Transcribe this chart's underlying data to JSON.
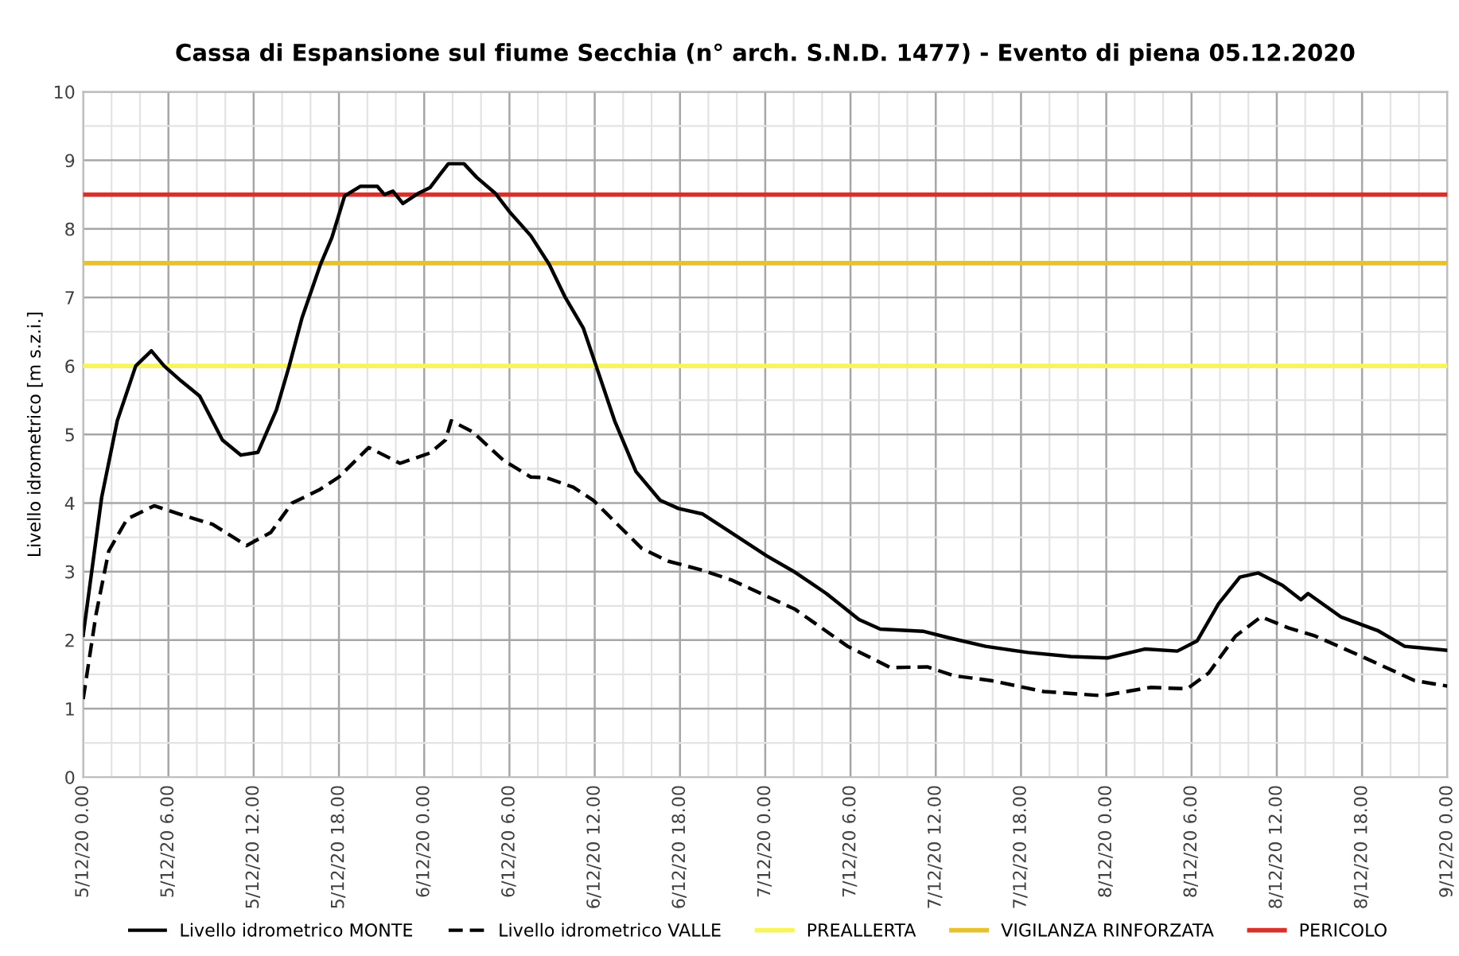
{
  "chart_data": {
    "type": "line",
    "title": "Cassa di Espansione sul fiume Secchia (n° arch. S.N.D. 1477) - Evento di piena 05.12.2020",
    "ylabel": "Livello idrometrico [m s.z.i.]",
    "series": [
      {
        "name": "Livello idrometrico MONTE",
        "color": "#000000",
        "line_style": "solid",
        "x": [
          "2020-12-05T00:00",
          "2020-12-05T01:18",
          "2020-12-05T02:24",
          "2020-12-05T03:42",
          "2020-12-05T04:48",
          "2020-12-05T05:42",
          "2020-12-05T06:54",
          "2020-12-05T08:12",
          "2020-12-05T09:48",
          "2020-12-05T11:06",
          "2020-12-05T12:18",
          "2020-12-05T13:36",
          "2020-12-05T14:30",
          "2020-12-05T15:24",
          "2020-12-05T16:42",
          "2020-12-05T17:30",
          "2020-12-05T18:24",
          "2020-12-05T19:30",
          "2020-12-05T20:42",
          "2020-12-05T21:12",
          "2020-12-05T21:48",
          "2020-12-05T22:30",
          "2020-12-05T23:36",
          "2020-12-06T00:24",
          "2020-12-06T01:06",
          "2020-12-06T01:42",
          "2020-12-06T02:48",
          "2020-12-06T03:42",
          "2020-12-06T05:00",
          "2020-12-06T06:00",
          "2020-12-06T07:30",
          "2020-12-06T08:48",
          "2020-12-06T09:54",
          "2020-12-06T11:12",
          "2020-12-06T12:06",
          "2020-12-06T13:24",
          "2020-12-06T14:54",
          "2020-12-06T16:36",
          "2020-12-06T17:54",
          "2020-12-06T19:36",
          "2020-12-06T21:36",
          "2020-12-07T00:06",
          "2020-12-07T02:06",
          "2020-12-07T04:18",
          "2020-12-07T06:36",
          "2020-12-07T08:06",
          "2020-12-07T11:06",
          "2020-12-07T13:00",
          "2020-12-07T15:30",
          "2020-12-07T18:30",
          "2020-12-07T21:30",
          "2020-12-08T00:06",
          "2020-12-08T02:42",
          "2020-12-08T05:00",
          "2020-12-08T06:24",
          "2020-12-08T07:54",
          "2020-12-08T09:24",
          "2020-12-08T10:42",
          "2020-12-08T12:24",
          "2020-12-08T13:42",
          "2020-12-08T14:12",
          "2020-12-08T16:30",
          "2020-12-08T19:06",
          "2020-12-08T21:00",
          "2020-12-09T00:00"
        ],
        "values": [
          2.07,
          4.08,
          5.2,
          6.0,
          6.22,
          6.0,
          5.78,
          5.56,
          4.92,
          4.7,
          4.74,
          5.36,
          6.0,
          6.7,
          7.48,
          7.87,
          8.48,
          8.62,
          8.62,
          8.5,
          8.55,
          8.37,
          8.52,
          8.6,
          8.79,
          8.95,
          8.95,
          8.75,
          8.52,
          8.25,
          7.9,
          7.48,
          7.01,
          6.55,
          6.0,
          5.2,
          4.46,
          4.04,
          3.92,
          3.84,
          3.57,
          3.23,
          2.99,
          2.68,
          2.3,
          2.16,
          2.13,
          2.03,
          1.91,
          1.82,
          1.76,
          1.74,
          1.87,
          1.84,
          1.99,
          2.53,
          2.92,
          2.98,
          2.8,
          2.59,
          2.68,
          2.34,
          2.14,
          1.91,
          1.85
        ]
      },
      {
        "name": "Livello idrometrico VALLE",
        "color": "#000000",
        "line_style": "dashed",
        "x": [
          "2020-12-05T00:00",
          "2020-12-05T00:54",
          "2020-12-05T01:48",
          "2020-12-05T03:06",
          "2020-12-05T05:00",
          "2020-12-05T06:54",
          "2020-12-05T09:06",
          "2020-12-05T11:30",
          "2020-12-05T13:12",
          "2020-12-05T14:42",
          "2020-12-05T16:36",
          "2020-12-05T18:00",
          "2020-12-05T20:06",
          "2020-12-05T22:18",
          "2020-12-06T00:24",
          "2020-12-06T01:30",
          "2020-12-06T01:54",
          "2020-12-06T03:24",
          "2020-12-06T05:36",
          "2020-12-06T07:30",
          "2020-12-06T08:36",
          "2020-12-06T10:30",
          "2020-12-06T11:54",
          "2020-12-06T13:24",
          "2020-12-06T15:18",
          "2020-12-06T17:12",
          "2020-12-06T19:24",
          "2020-12-06T21:36",
          "2020-12-07T02:06",
          "2020-12-07T05:48",
          "2020-12-07T08:48",
          "2020-12-07T11:24",
          "2020-12-07T13:18",
          "2020-12-07T15:54",
          "2020-12-07T19:36",
          "2020-12-07T23:42",
          "2020-12-08T03:06",
          "2020-12-08T05:42",
          "2020-12-08T07:12",
          "2020-12-08T09:06",
          "2020-12-08T10:54",
          "2020-12-08T12:48",
          "2020-12-08T14:42",
          "2020-12-08T18:00",
          "2020-12-08T21:42",
          "2020-12-09T00:00"
        ],
        "values": [
          1.14,
          2.37,
          3.3,
          3.77,
          3.96,
          3.83,
          3.69,
          3.38,
          3.57,
          4.0,
          4.19,
          4.38,
          4.81,
          4.58,
          4.73,
          4.92,
          5.2,
          5.04,
          4.62,
          4.38,
          4.37,
          4.23,
          4.04,
          3.73,
          3.34,
          3.15,
          3.03,
          2.88,
          2.45,
          1.91,
          1.6,
          1.61,
          1.48,
          1.41,
          1.25,
          1.19,
          1.31,
          1.29,
          1.52,
          2.06,
          2.34,
          2.18,
          2.06,
          1.76,
          1.41,
          1.33
        ]
      }
    ],
    "ref_lines": [
      {
        "axis": "y",
        "value": 6,
        "label": "PREALLERTA",
        "color": "#f7f55a"
      },
      {
        "axis": "y",
        "value": 7.5,
        "label": "VIGILANZA RINFORZATA",
        "color": "#e8c22c"
      },
      {
        "axis": "y",
        "value": 8.5,
        "label": "PERICOLO",
        "color": "#d9302c"
      }
    ],
    "xlim": [
      "2020-12-05T00:00",
      "2020-12-09T00:00"
    ],
    "xticks": [
      {
        "value": "2020-12-05T00:00",
        "label": "5/12/20 0.00"
      },
      {
        "value": "2020-12-05T06:00",
        "label": "5/12/20 6.00"
      },
      {
        "value": "2020-12-05T12:00",
        "label": "5/12/20 12.00"
      },
      {
        "value": "2020-12-05T18:00",
        "label": "5/12/20 18.00"
      },
      {
        "value": "2020-12-06T00:00",
        "label": "6/12/20 0.00"
      },
      {
        "value": "2020-12-06T06:00",
        "label": "6/12/20 6.00"
      },
      {
        "value": "2020-12-06T12:00",
        "label": "6/12/20 12.00"
      },
      {
        "value": "2020-12-06T18:00",
        "label": "6/12/20 18.00"
      },
      {
        "value": "2020-12-07T00:00",
        "label": "7/12/20 0.00"
      },
      {
        "value": "2020-12-07T06:00",
        "label": "7/12/20 6.00"
      },
      {
        "value": "2020-12-07T12:00",
        "label": "7/12/20 12.00"
      },
      {
        "value": "2020-12-07T18:00",
        "label": "7/12/20 18.00"
      },
      {
        "value": "2020-12-08T00:00",
        "label": "8/12/20 0.00"
      },
      {
        "value": "2020-12-08T06:00",
        "label": "8/12/20 6.00"
      },
      {
        "value": "2020-12-08T12:00",
        "label": "8/12/20 12.00"
      },
      {
        "value": "2020-12-08T18:00",
        "label": "8/12/20 18.00"
      },
      {
        "value": "2020-12-09T00:00",
        "label": "9/12/20 0.00"
      }
    ],
    "ylim": [
      0,
      10
    ],
    "yticks": [
      0,
      1,
      2,
      3,
      4,
      5,
      6,
      7,
      8,
      9,
      10
    ],
    "grid": true,
    "legend": "bottom"
  }
}
